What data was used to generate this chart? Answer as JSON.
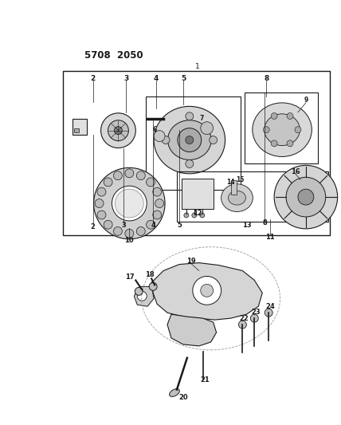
{
  "bg_color": "#ffffff",
  "line_color": "#1a1a1a",
  "fig_width": 4.28,
  "fig_height": 5.33,
  "dpi": 100,
  "part_number": "5708  2050",
  "label_fontsize": 6.0
}
